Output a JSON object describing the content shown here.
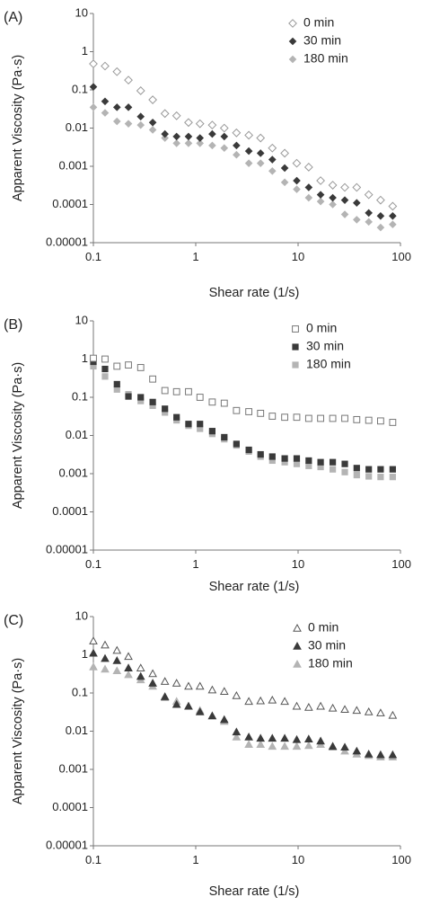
{
  "figure": {
    "colors": {
      "series_0": "#999999",
      "series_30": "#3a3a3a",
      "series_180": "#b4b4b4",
      "axis": "#777777"
    }
  },
  "chart_data": [
    {
      "type": "scatter",
      "panel_label": "(A)",
      "xlabel": "Shear rate (1/s)",
      "ylabel": "Apparent Viscosity  (Pa·s)",
      "xscale": "log",
      "yscale": "log",
      "xlim": [
        0.1,
        100
      ],
      "ylim": [
        1e-05,
        10
      ],
      "x_ticks": [
        "0.1",
        "1",
        "10",
        "100"
      ],
      "y_ticks": [
        "0.00001",
        "0.0001",
        "0.001",
        "0.01",
        "0.1",
        "1",
        "10"
      ],
      "legend_position": "top-right",
      "grid": false,
      "series": [
        {
          "name": "0 min",
          "marker": "diamond-open",
          "color": "#999999",
          "x": [
            0.1,
            0.13,
            0.17,
            0.22,
            0.29,
            0.38,
            0.5,
            0.65,
            0.85,
            1.1,
            1.45,
            1.9,
            2.5,
            3.3,
            4.3,
            5.6,
            7.4,
            9.7,
            12.7,
            16.6,
            21.8,
            28.6,
            37.4,
            49,
            64,
            84
          ],
          "y": [
            0.48,
            0.42,
            0.3,
            0.18,
            0.095,
            0.055,
            0.024,
            0.021,
            0.014,
            0.013,
            0.012,
            0.01,
            0.0075,
            0.0065,
            0.0055,
            0.003,
            0.0022,
            0.0012,
            0.00095,
            0.00042,
            0.00032,
            0.00028,
            0.00028,
            0.00018,
            0.00013,
            9e-05
          ]
        },
        {
          "name": "30 min",
          "marker": "diamond-filled",
          "color": "#3a3a3a",
          "x": [
            0.1,
            0.13,
            0.17,
            0.22,
            0.29,
            0.38,
            0.5,
            0.65,
            0.85,
            1.1,
            1.45,
            1.9,
            2.5,
            3.3,
            4.3,
            5.6,
            7.4,
            9.7,
            12.7,
            16.6,
            21.8,
            28.6,
            37.4,
            49,
            64,
            84
          ],
          "y": [
            0.12,
            0.05,
            0.035,
            0.035,
            0.02,
            0.014,
            0.007,
            0.006,
            0.006,
            0.0055,
            0.007,
            0.006,
            0.0035,
            0.0025,
            0.0022,
            0.0015,
            0.0009,
            0.00042,
            0.00028,
            0.00018,
            0.00015,
            0.00013,
            0.00011,
            6e-05,
            5e-05,
            5e-05
          ]
        },
        {
          "name": "180 min",
          "marker": "diamond-filled",
          "color": "#b4b4b4",
          "x": [
            0.1,
            0.13,
            0.17,
            0.22,
            0.29,
            0.38,
            0.5,
            0.65,
            0.85,
            1.1,
            1.45,
            1.9,
            2.5,
            3.3,
            4.3,
            5.6,
            7.4,
            9.7,
            12.7,
            16.6,
            21.8,
            28.6,
            37.4,
            49,
            64,
            84
          ],
          "y": [
            0.035,
            0.025,
            0.015,
            0.013,
            0.012,
            0.009,
            0.0055,
            0.004,
            0.004,
            0.004,
            0.0035,
            0.003,
            0.002,
            0.0012,
            0.0012,
            0.00075,
            0.00038,
            0.00025,
            0.00015,
            0.00012,
            0.0001,
            5.5e-05,
            4e-05,
            3.5e-05,
            2.5e-05,
            3e-05
          ]
        }
      ]
    },
    {
      "type": "scatter",
      "panel_label": "(B)",
      "xlabel": "Shear rate (1/s)",
      "ylabel": "Apparent Viscosity  (Pa·s)",
      "xscale": "log",
      "yscale": "log",
      "xlim": [
        0.1,
        100
      ],
      "ylim": [
        1e-05,
        10
      ],
      "x_ticks": [
        "0.1",
        "1",
        "10",
        "100"
      ],
      "y_ticks": [
        "0.00001",
        "0.0001",
        "0.001",
        "0.01",
        "0.1",
        "1",
        "10"
      ],
      "legend_position": "top-right",
      "grid": false,
      "series": [
        {
          "name": "0 min",
          "marker": "square-open",
          "color": "#777777",
          "x": [
            0.1,
            0.13,
            0.17,
            0.22,
            0.29,
            0.38,
            0.5,
            0.65,
            0.85,
            1.1,
            1.45,
            1.9,
            2.5,
            3.3,
            4.3,
            5.6,
            7.4,
            9.7,
            12.7,
            16.6,
            21.8,
            28.6,
            37.4,
            49,
            64,
            84
          ],
          "y": [
            1.05,
            1.0,
            0.65,
            0.7,
            0.6,
            0.3,
            0.15,
            0.14,
            0.14,
            0.1,
            0.075,
            0.07,
            0.045,
            0.042,
            0.038,
            0.032,
            0.03,
            0.03,
            0.028,
            0.028,
            0.028,
            0.028,
            0.026,
            0.025,
            0.024,
            0.022
          ]
        },
        {
          "name": "30  min",
          "marker": "square-filled",
          "color": "#3a3a3a",
          "x": [
            0.1,
            0.13,
            0.17,
            0.22,
            0.29,
            0.38,
            0.5,
            0.65,
            0.85,
            1.1,
            1.45,
            1.9,
            2.5,
            3.3,
            4.3,
            5.6,
            7.4,
            9.7,
            12.7,
            16.6,
            21.8,
            28.6,
            37.4,
            49,
            64,
            84
          ],
          "y": [
            0.85,
            0.55,
            0.22,
            0.105,
            0.1,
            0.075,
            0.05,
            0.03,
            0.02,
            0.02,
            0.013,
            0.009,
            0.006,
            0.0042,
            0.0032,
            0.0028,
            0.0025,
            0.0025,
            0.0022,
            0.002,
            0.002,
            0.0018,
            0.0014,
            0.0013,
            0.0013,
            0.0013
          ]
        },
        {
          "name": "180 min",
          "marker": "square-filled",
          "color": "#b4b4b4",
          "x": [
            0.1,
            0.13,
            0.17,
            0.22,
            0.29,
            0.38,
            0.5,
            0.65,
            0.85,
            1.1,
            1.45,
            1.9,
            2.5,
            3.3,
            4.3,
            5.6,
            7.4,
            9.7,
            12.7,
            16.6,
            21.8,
            28.6,
            37.4,
            49,
            64,
            84
          ],
          "y": [
            0.65,
            0.35,
            0.16,
            0.12,
            0.08,
            0.06,
            0.04,
            0.025,
            0.018,
            0.015,
            0.011,
            0.008,
            0.0055,
            0.0038,
            0.0028,
            0.0022,
            0.002,
            0.0018,
            0.0016,
            0.0015,
            0.0013,
            0.0011,
            0.00092,
            0.00085,
            0.00082,
            0.00082
          ]
        }
      ]
    },
    {
      "type": "scatter",
      "panel_label": "(C)",
      "xlabel": "Shear rate (1/s)",
      "ylabel": "Apparent Viscosity  (Pa·s)",
      "xscale": "log",
      "yscale": "log",
      "xlim": [
        0.1,
        100
      ],
      "ylim": [
        1e-05,
        10
      ],
      "x_ticks": [
        "0.1",
        "1",
        "10",
        "100"
      ],
      "y_ticks": [
        "0.00001",
        "0.0001",
        "0.001",
        "0.01",
        "0.1",
        "1",
        "10"
      ],
      "legend_position": "top-right",
      "grid": false,
      "series": [
        {
          "name": "0 min",
          "marker": "triangle-open",
          "color": "#555555",
          "x": [
            0.1,
            0.13,
            0.17,
            0.22,
            0.29,
            0.38,
            0.5,
            0.65,
            0.85,
            1.1,
            1.45,
            1.9,
            2.5,
            3.3,
            4.3,
            5.6,
            7.4,
            9.7,
            12.7,
            16.6,
            21.8,
            28.6,
            37.4,
            49,
            64,
            84
          ],
          "y": [
            2.3,
            1.8,
            1.3,
            0.9,
            0.45,
            0.32,
            0.2,
            0.18,
            0.15,
            0.15,
            0.12,
            0.11,
            0.085,
            0.06,
            0.062,
            0.065,
            0.06,
            0.045,
            0.042,
            0.045,
            0.04,
            0.037,
            0.035,
            0.032,
            0.03,
            0.026
          ]
        },
        {
          "name": "30 min",
          "marker": "triangle-filled",
          "color": "#3a3a3a",
          "x": [
            0.1,
            0.13,
            0.17,
            0.22,
            0.29,
            0.38,
            0.5,
            0.65,
            0.85,
            1.1,
            1.45,
            1.9,
            2.5,
            3.3,
            4.3,
            5.6,
            7.4,
            9.7,
            12.7,
            16.6,
            21.8,
            28.6,
            37.4,
            49,
            64,
            84
          ],
          "y": [
            1.1,
            0.8,
            0.7,
            0.45,
            0.27,
            0.18,
            0.08,
            0.05,
            0.045,
            0.032,
            0.025,
            0.02,
            0.0095,
            0.007,
            0.0065,
            0.0065,
            0.0065,
            0.006,
            0.0062,
            0.0055,
            0.004,
            0.0038,
            0.003,
            0.0025,
            0.0024,
            0.0024
          ]
        },
        {
          "name": "180 min",
          "marker": "triangle-filled",
          "color": "#b4b4b4",
          "x": [
            0.1,
            0.13,
            0.17,
            0.22,
            0.29,
            0.38,
            0.5,
            0.65,
            0.85,
            1.1,
            1.45,
            1.9,
            2.5,
            3.3,
            4.3,
            5.6,
            7.4,
            9.7,
            12.7,
            16.6,
            21.8,
            28.6,
            37.4,
            49,
            64,
            84
          ],
          "y": [
            0.48,
            0.42,
            0.38,
            0.3,
            0.22,
            0.15,
            0.075,
            0.06,
            0.045,
            0.035,
            0.025,
            0.018,
            0.007,
            0.0045,
            0.0045,
            0.004,
            0.004,
            0.004,
            0.0042,
            0.0045,
            0.0038,
            0.003,
            0.0025,
            0.0023,
            0.0021,
            0.0021
          ]
        }
      ]
    }
  ]
}
